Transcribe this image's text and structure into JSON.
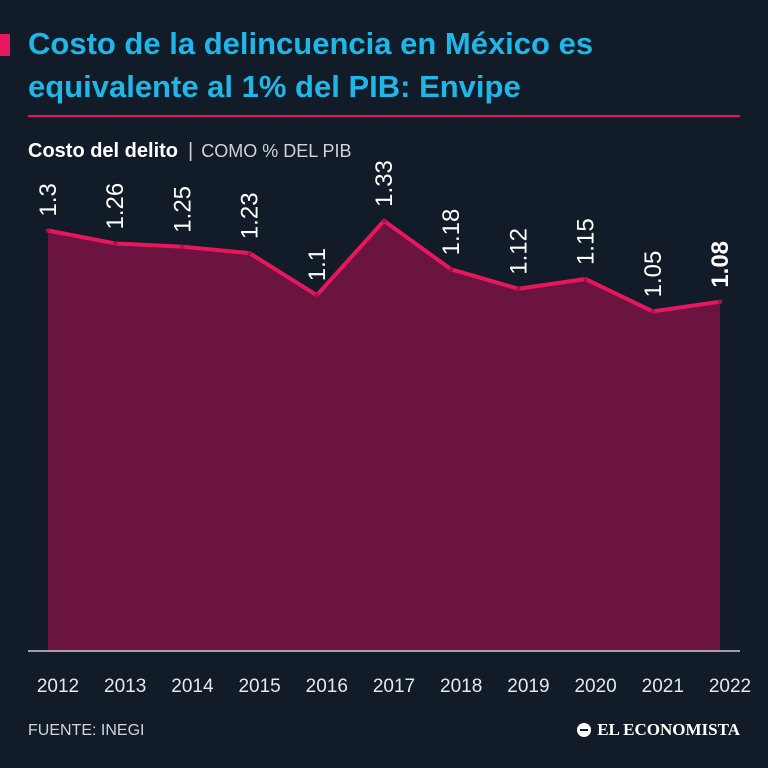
{
  "header": {
    "title": "Costo de la delincuencia en México es equivalente al 1% del PIB: Envipe",
    "subtitle_main": "Costo del delito",
    "subtitle_separator": "|",
    "subtitle_unit": "COMO % DEL PIB"
  },
  "footer": {
    "source": "FUENTE: INEGI",
    "brand": "EL ECONOMISTA"
  },
  "colors": {
    "background": "#121c28",
    "title": "#1fb6e8",
    "accent": "#e8175d",
    "area_fill": "#6b1440"
  },
  "chart_data": {
    "type": "area",
    "title": "Costo del delito",
    "ylabel": "COMO % DEL PIB",
    "xlabel": "",
    "categories": [
      "2012",
      "2013",
      "2014",
      "2015",
      "2016",
      "2017",
      "2018",
      "2019",
      "2020",
      "2021",
      "2022"
    ],
    "values": [
      1.3,
      1.26,
      1.25,
      1.23,
      1.1,
      1.33,
      1.18,
      1.12,
      1.15,
      1.05,
      1.08
    ],
    "labels": [
      "1.3",
      "1.26",
      "1.25",
      "1.23",
      "1.1",
      "1.33",
      "1.18",
      "1.12",
      "1.15",
      "1.05",
      "1.08"
    ],
    "highlight_index": 10,
    "ylim": [
      0,
      1.45
    ],
    "grid": false,
    "legend": "none"
  }
}
